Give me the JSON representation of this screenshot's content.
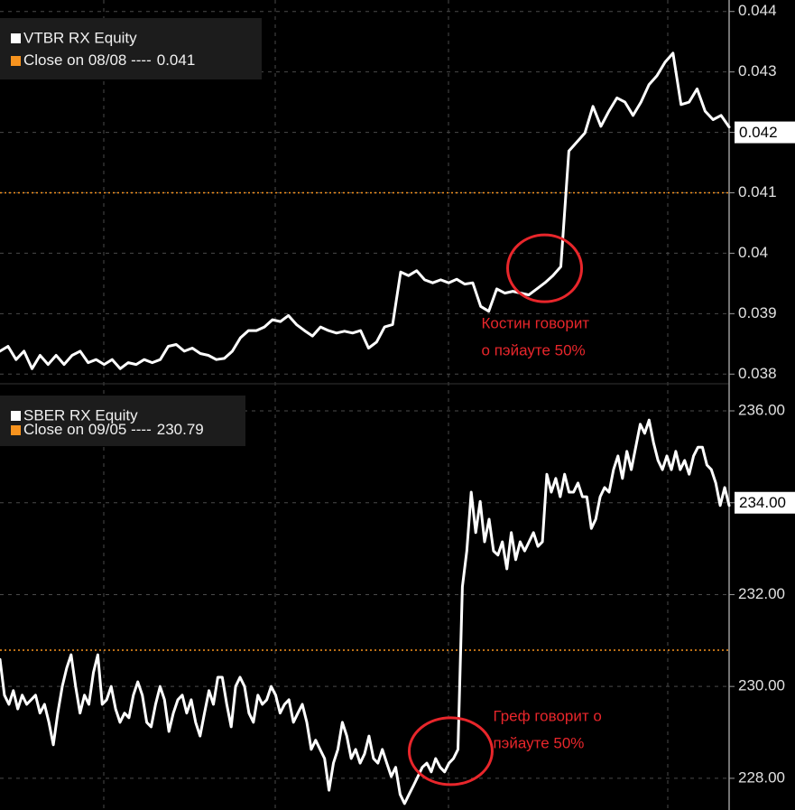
{
  "chart_data": [
    {
      "type": "line",
      "series": [
        {
          "name": "VTBR RX Equity",
          "color": "#ffffff",
          "values": [
            0.03838,
            0.03846,
            0.03824,
            0.03838,
            0.03809,
            0.03831,
            0.03816,
            0.03831,
            0.03816,
            0.03831,
            0.03838,
            0.03819,
            0.03824,
            0.03816,
            0.03824,
            0.03809,
            0.03819,
            0.03816,
            0.03824,
            0.03819,
            0.03824,
            0.03846,
            0.03849,
            0.03838,
            0.03843,
            0.03834,
            0.03831,
            0.03824,
            0.03826,
            0.03838,
            0.0386,
            0.03872,
            0.03872,
            0.03878,
            0.0389,
            0.03887,
            0.03897,
            0.03882,
            0.03872,
            0.03863,
            0.03878,
            0.03872,
            0.03868,
            0.03871,
            0.03868,
            0.03872,
            0.03843,
            0.03853,
            0.03878,
            0.03882,
            0.03969,
            0.03963,
            0.03971,
            0.03956,
            0.03951,
            0.03956,
            0.03951,
            0.03957,
            0.03949,
            0.03951,
            0.03912,
            0.03904,
            0.03941,
            0.03934,
            0.03937,
            0.03934,
            0.03931,
            0.03941,
            0.03951,
            0.03963,
            0.03978,
            0.04169,
            0.04184,
            0.04199,
            0.04243,
            0.0421,
            0.04235,
            0.04257,
            0.0425,
            0.04228,
            0.0425,
            0.04279,
            0.04294,
            0.04316,
            0.04331,
            0.04246,
            0.0425,
            0.04272,
            0.04235,
            0.04221,
            0.04228,
            0.04209
          ]
        }
      ],
      "close_label": "Close on 08/08 ----",
      "close_value": 0.041,
      "close_color": "#f7931e",
      "last_value": 0.042,
      "annotation": [
        "Костин говорит",
        "о пэйауте 50%"
      ],
      "annotation_color": "#e8262b",
      "ylim": [
        0.03784,
        0.04419
      ],
      "yticks": [
        0.038,
        0.039,
        0.04,
        0.041,
        0.042,
        0.043,
        0.044
      ],
      "grid": true
    },
    {
      "type": "line",
      "series": [
        {
          "name": "SBER RX Equity",
          "color": "#ffffff",
          "values": [
            230.59,
            229.81,
            229.61,
            229.91,
            229.51,
            229.81,
            229.61,
            229.71,
            229.81,
            229.42,
            229.61,
            229.22,
            228.73,
            229.42,
            230.0,
            230.4,
            230.69,
            230.0,
            229.42,
            229.81,
            229.61,
            230.3,
            230.69,
            229.61,
            229.71,
            230.0,
            229.51,
            229.22,
            229.42,
            229.32,
            229.81,
            230.1,
            229.81,
            229.22,
            229.12,
            229.61,
            230.0,
            229.71,
            229.02,
            229.42,
            229.71,
            229.81,
            229.42,
            229.71,
            229.22,
            228.92,
            229.42,
            229.91,
            229.61,
            230.2,
            230.2,
            229.61,
            229.12,
            230.0,
            230.2,
            230.0,
            229.42,
            229.22,
            229.81,
            229.61,
            229.71,
            230.0,
            229.81,
            229.42,
            229.61,
            229.71,
            229.22,
            229.42,
            229.61,
            229.22,
            228.63,
            228.83,
            228.63,
            228.43,
            227.74,
            228.33,
            228.63,
            229.22,
            228.92,
            228.43,
            228.63,
            228.33,
            228.53,
            228.92,
            228.43,
            228.33,
            228.63,
            228.33,
            228.04,
            228.24,
            227.65,
            227.45,
            227.65,
            227.84,
            228.04,
            228.24,
            228.33,
            228.14,
            228.43,
            228.24,
            228.14,
            228.33,
            228.43,
            228.63,
            232.17,
            232.95,
            234.23,
            233.35,
            234.03,
            233.15,
            233.64,
            232.95,
            232.86,
            233.15,
            232.56,
            233.35,
            232.76,
            233.15,
            232.95,
            233.15,
            233.35,
            233.05,
            233.15,
            234.62,
            234.23,
            234.53,
            234.13,
            234.62,
            234.23,
            234.23,
            234.43,
            234.13,
            234.13,
            233.44,
            233.64,
            234.13,
            234.33,
            234.23,
            234.72,
            235.02,
            234.53,
            235.12,
            234.72,
            235.21,
            235.71,
            235.51,
            235.8,
            235.31,
            234.92,
            234.72,
            235.02,
            234.72,
            235.12,
            234.72,
            234.92,
            234.62,
            235.02,
            235.21,
            235.21,
            234.82,
            234.72,
            234.43,
            233.94,
            234.33,
            233.94
          ]
        }
      ],
      "close_label": "Close on 09/05 ----",
      "close_value": 230.79,
      "close_color": "#f7931e",
      "last_value": {
        "value": 234,
        "label": "234.00"
      },
      "annotation": [
        "Греф говорит о",
        "пэйауте 50%"
      ],
      "annotation_color": "#e8262b",
      "ylim": [
        227.31,
        236.59
      ],
      "yticks": [
        {
          "value": 228,
          "label": "228.00"
        },
        {
          "value": 230,
          "label": "230.00"
        },
        {
          "value": 232,
          "label": "232.00"
        },
        {
          "value": 234,
          "label": "234.00"
        },
        {
          "value": 236,
          "label": "236.00"
        }
      ],
      "grid": true
    }
  ]
}
